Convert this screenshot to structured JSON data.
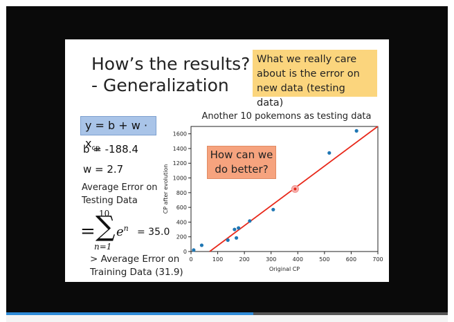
{
  "player": {
    "progress_fraction": 0.56
  },
  "slide": {
    "title": "How’s the results?\n- Generalization",
    "callout": "What we really care\nabout is the error on\nnew data (testing data)",
    "formula_text": "y = b + w · x",
    "formula_subscript": "cp",
    "b_value": "b = -188.4",
    "w_value": "w = 2.7",
    "avg_error_label": "Average Error on\nTesting Data",
    "sum_upper": "10",
    "sum_lower": "n=1",
    "sum_term_base": "e",
    "sum_term_exp": "n",
    "sum_value": "= 35.0",
    "training_note": "> Average Error on\nTraining Data (31.9)",
    "question_box": "How can we\ndo better?"
  },
  "chart_data": {
    "type": "scatter",
    "title": "Another 10 pokemons as testing data",
    "xlabel": "Original CP",
    "ylabel": "CP after evolution",
    "xlim": [
      0,
      700
    ],
    "ylim": [
      0,
      1700
    ],
    "x_ticks": [
      0,
      100,
      200,
      300,
      400,
      500,
      600,
      700
    ],
    "y_ticks": [
      0,
      200,
      400,
      600,
      800,
      1000,
      1200,
      1400,
      1600
    ],
    "points": [
      {
        "x": 10,
        "y": 20
      },
      {
        "x": 40,
        "y": 85
      },
      {
        "x": 138,
        "y": 155
      },
      {
        "x": 163,
        "y": 300
      },
      {
        "x": 170,
        "y": 185
      },
      {
        "x": 178,
        "y": 320
      },
      {
        "x": 220,
        "y": 415
      },
      {
        "x": 308,
        "y": 570
      },
      {
        "x": 518,
        "y": 1340
      },
      {
        "x": 620,
        "y": 1640
      }
    ],
    "highlight_point": {
      "x": 390,
      "y": 850
    },
    "fit_line": {
      "b": -188.4,
      "w": 2.7
    },
    "point_color": "#1f77b4",
    "line_color": "#e8281a",
    "grid": false
  }
}
